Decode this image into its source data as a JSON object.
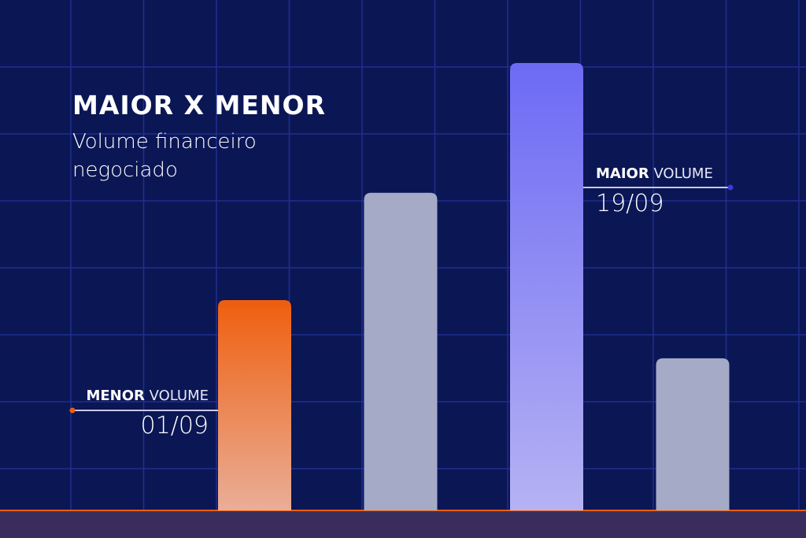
{
  "chart_data": {
    "type": "bar",
    "title": "MAIOR X MENOR",
    "subtitle": "Volume financeiro negociado",
    "categories": [
      null,
      null,
      null,
      null
    ],
    "values": [
      47,
      71,
      100,
      34
    ],
    "colors": [
      "#ef5f0f",
      "#a5aac6",
      "#6d6af5",
      "#a5aac6"
    ],
    "annotations": [
      {
        "bold": "MENOR",
        "text": "VOLUME",
        "date": "01/09"
      },
      {
        "bold": "MAIOR",
        "text": "VOLUME",
        "date": "19/09"
      }
    ]
  }
}
